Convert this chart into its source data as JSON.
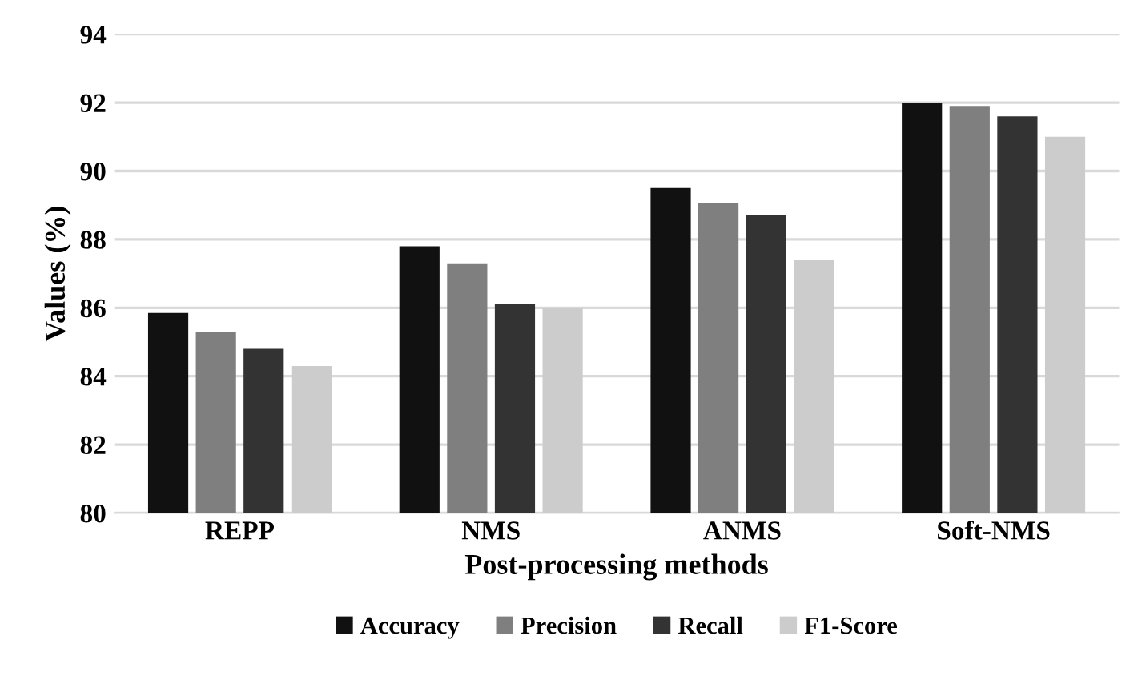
{
  "chart_data": {
    "type": "bar",
    "xlabel": "Post-processing methods",
    "ylabel": "Values (%)",
    "categories": [
      "REPP",
      "NMS",
      "ANMS",
      "Soft-NMS"
    ],
    "series": [
      {
        "name": "Accuracy",
        "color": "#111111",
        "values": [
          85.85,
          87.8,
          89.5,
          92.0
        ]
      },
      {
        "name": "Precision",
        "color": "#7f7f7f",
        "values": [
          85.3,
          87.3,
          89.05,
          91.9
        ]
      },
      {
        "name": "Recall",
        "color": "#333333",
        "values": [
          84.8,
          86.1,
          88.7,
          91.6
        ]
      },
      {
        "name": "F1-Score",
        "color": "#cccccc",
        "values": [
          84.3,
          86.0,
          87.4,
          91.0
        ]
      }
    ],
    "ylim": [
      80,
      94
    ],
    "yticks": [
      80,
      82,
      84,
      86,
      88,
      90,
      92,
      94
    ],
    "grid": "y",
    "legend": "bottom"
  }
}
